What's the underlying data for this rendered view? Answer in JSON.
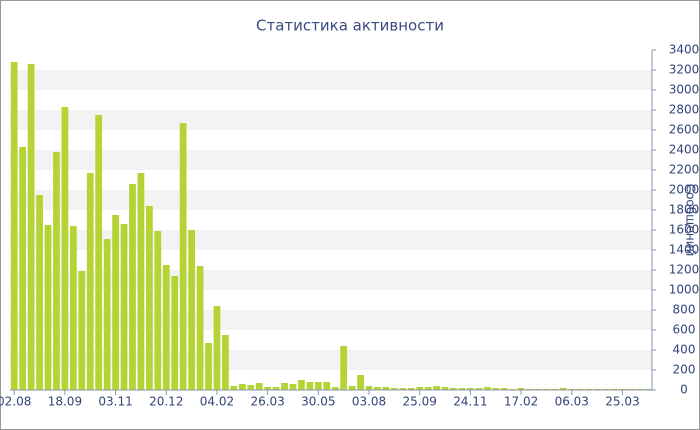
{
  "chart_data": {
    "type": "bar",
    "title": "Статистика активности",
    "y_label": "Сообщений",
    "categories": [
      "02.08",
      null,
      null,
      null,
      null,
      null,
      "18.09",
      null,
      null,
      null,
      null,
      null,
      "03.11",
      null,
      null,
      null,
      null,
      null,
      "20.12",
      null,
      null,
      null,
      null,
      null,
      "04.02",
      null,
      null,
      null,
      null,
      null,
      "26.03",
      null,
      null,
      null,
      null,
      null,
      "30.05",
      null,
      null,
      null,
      null,
      null,
      "03.08",
      null,
      null,
      null,
      null,
      null,
      "25.09",
      null,
      null,
      null,
      null,
      null,
      "24.11",
      null,
      null,
      null,
      null,
      null,
      "17.02",
      null,
      null,
      null,
      null,
      null,
      "06.03",
      null,
      null,
      null,
      null,
      null,
      "25.03",
      null,
      null,
      null
    ],
    "values": [
      3280,
      2430,
      3260,
      1950,
      1650,
      2380,
      2830,
      1640,
      1190,
      2170,
      2750,
      1510,
      1750,
      1660,
      2060,
      2170,
      1840,
      1590,
      1250,
      1140,
      2670,
      1600,
      1240,
      470,
      840,
      550,
      40,
      60,
      50,
      70,
      30,
      30,
      70,
      60,
      100,
      80,
      80,
      80,
      30,
      440,
      40,
      150,
      40,
      30,
      30,
      20,
      20,
      20,
      30,
      30,
      40,
      30,
      20,
      20,
      20,
      20,
      30,
      20,
      20,
      10,
      20,
      10,
      10,
      10,
      10,
      20,
      10,
      10,
      10,
      10,
      10,
      10,
      10,
      10,
      10,
      10
    ],
    "color": "#b5d334",
    "ylim": [
      0,
      3400
    ],
    "yticks": [
      0,
      200,
      400,
      600,
      800,
      1000,
      1200,
      1400,
      1600,
      1800,
      2000,
      2200,
      2400,
      2600,
      2800,
      3000,
      3200,
      3400
    ],
    "grid": true,
    "y_axis_side": "right"
  }
}
